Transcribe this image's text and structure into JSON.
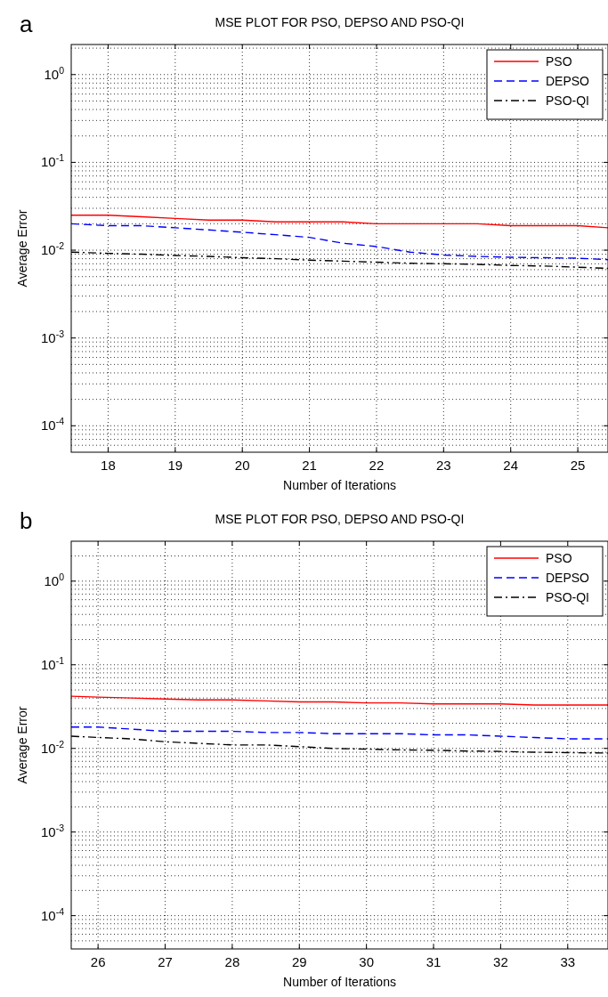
{
  "chart_data": [
    {
      "type": "line",
      "title": "MSE PLOT FOR PSO, DEPSO AND PSO-QI",
      "xlabel": "Number of Iterations",
      "ylabel": "Average Error",
      "annotations": [
        "a"
      ],
      "log": "y",
      "grid": true,
      "legend": "top right",
      "xlim": [
        17.45,
        25.45
      ],
      "xticks": [
        18,
        19,
        20,
        21,
        22,
        23,
        24,
        25
      ],
      "ylim": [
        5e-05,
        2.2
      ],
      "yticks": [
        {
          "value": 0.0001,
          "label": "10$^{-4}$"
        },
        {
          "value": 0.001,
          "label": "10$^{-3}$"
        },
        {
          "value": 0.01,
          "label": "10$^{-2}$"
        },
        {
          "value": 0.1,
          "label": "10$^{-1}$"
        },
        {
          "value": 1,
          "label": "10$^{0}$"
        }
      ],
      "x": [
        17.45,
        18,
        18.5,
        19,
        19.5,
        20,
        20.5,
        21,
        21.5,
        22,
        22.5,
        23,
        23.5,
        24,
        24.5,
        25,
        25.45
      ],
      "series": [
        {
          "name": "PSO",
          "color": "#ff0000",
          "line_style": "solid",
          "values": [
            0.025,
            0.025,
            0.024,
            0.023,
            0.022,
            0.022,
            0.021,
            0.021,
            0.021,
            0.02,
            0.02,
            0.02,
            0.02,
            0.019,
            0.019,
            0.019,
            0.018
          ]
        },
        {
          "name": "DEPSO",
          "color": "#0000ff",
          "line_style": "dashed",
          "values": [
            0.02,
            0.019,
            0.019,
            0.018,
            0.017,
            0.016,
            0.015,
            0.014,
            0.012,
            0.011,
            0.0095,
            0.0088,
            0.0085,
            0.0083,
            0.0082,
            0.0081,
            0.0078
          ]
        },
        {
          "name": "PSO-QI",
          "color": "#000000",
          "line_style": "dashdot",
          "values": [
            0.0095,
            0.0092,
            0.009,
            0.0087,
            0.0085,
            0.0082,
            0.008,
            0.0077,
            0.0075,
            0.0073,
            0.0071,
            0.007,
            0.0069,
            0.0067,
            0.0066,
            0.0064,
            0.0062
          ]
        }
      ]
    },
    {
      "type": "line",
      "title": "MSE PLOT FOR PSO, DEPSO AND PSO-QI",
      "xlabel": "Number of Iterations",
      "ylabel": "Average Error",
      "annotations": [
        "b"
      ],
      "log": "y",
      "grid": true,
      "legend": "top right",
      "xlim": [
        25.6,
        33.6
      ],
      "xticks": [
        26,
        27,
        28,
        29,
        30,
        31,
        32,
        33
      ],
      "ylim": [
        4e-05,
        3
      ],
      "yticks": [
        {
          "value": 0.0001,
          "label": "10$^{-4}$"
        },
        {
          "value": 0.001,
          "label": "10$^{-3}$"
        },
        {
          "value": 0.01,
          "label": "10$^{-2}$"
        },
        {
          "value": 0.1,
          "label": "10$^{-1}$"
        },
        {
          "value": 1,
          "label": "10$^{0}$"
        }
      ],
      "x": [
        25.6,
        26,
        26.5,
        27,
        27.5,
        28,
        28.5,
        29,
        29.5,
        30,
        30.5,
        31,
        31.5,
        32,
        32.5,
        33,
        33.6
      ],
      "series": [
        {
          "name": "PSO",
          "color": "#ff0000",
          "line_style": "solid",
          "values": [
            0.042,
            0.041,
            0.04,
            0.039,
            0.038,
            0.038,
            0.037,
            0.036,
            0.036,
            0.035,
            0.035,
            0.034,
            0.034,
            0.034,
            0.033,
            0.033,
            0.033
          ]
        },
        {
          "name": "DEPSO",
          "color": "#0000ff",
          "line_style": "dashed",
          "values": [
            0.018,
            0.018,
            0.017,
            0.016,
            0.016,
            0.016,
            0.0155,
            0.0155,
            0.015,
            0.015,
            0.015,
            0.0145,
            0.0145,
            0.014,
            0.0135,
            0.013,
            0.013
          ]
        },
        {
          "name": "PSO-QI",
          "color": "#000000",
          "line_style": "dashdot",
          "values": [
            0.014,
            0.0135,
            0.013,
            0.012,
            0.0115,
            0.011,
            0.011,
            0.0105,
            0.01,
            0.0098,
            0.0096,
            0.0095,
            0.0093,
            0.0092,
            0.009,
            0.0089,
            0.0088
          ]
        }
      ]
    }
  ]
}
